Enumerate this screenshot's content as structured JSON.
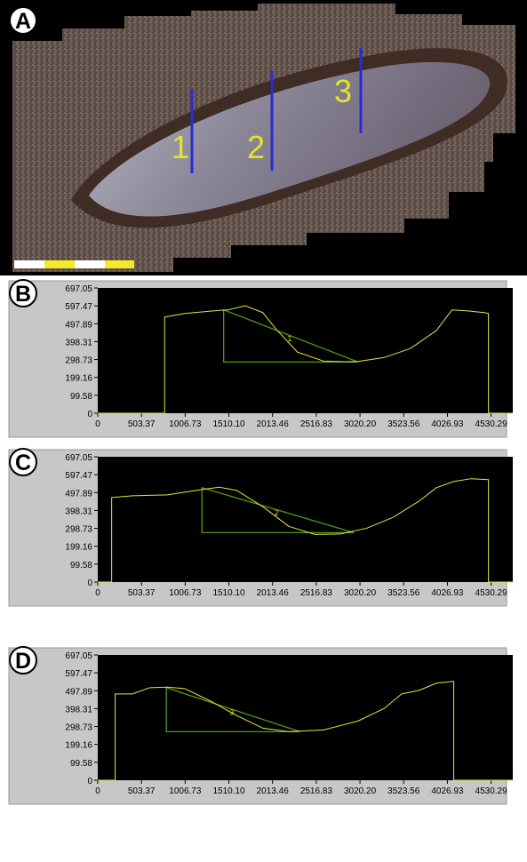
{
  "panels": {
    "photo_letter": "A",
    "photo_section_labels": [
      "1",
      "2",
      "3"
    ]
  },
  "chart_data": [
    {
      "type": "line",
      "panel": "B",
      "profile_label": "1",
      "yticks": [
        "697.05",
        "597.47",
        "497.89",
        "398.31",
        "298.73",
        "199.16",
        "99.58",
        "0"
      ],
      "xticks": [
        "0",
        "503.37",
        "1006.73",
        "1510.10",
        "2013.46",
        "2516.83",
        "3020.20",
        "3523.56",
        "4026.93",
        "4530.29"
      ],
      "ylim": [
        0,
        697.05
      ],
      "xlim": [
        0,
        4780
      ],
      "grid": false,
      "series": [
        {
          "x": [
            0,
            770,
            770,
            1000,
            1400,
            1500,
            1700,
            1900,
            2050,
            2300,
            2600,
            2850,
            3000,
            3300,
            3600,
            3900,
            4080,
            4250,
            4450,
            4500,
            4500,
            4780
          ],
          "values": [
            0,
            0,
            535,
            555,
            572,
            575,
            598,
            560,
            470,
            340,
            290,
            286,
            288,
            310,
            360,
            460,
            575,
            570,
            560,
            555,
            0,
            0
          ]
        }
      ],
      "triangle": {
        "top": [
          1450,
          575
        ],
        "corner": [
          1450,
          285
        ],
        "end": [
          3000,
          285
        ]
      }
    },
    {
      "type": "line",
      "panel": "C",
      "profile_label": "2",
      "yticks": [
        "697.05",
        "597.47",
        "497.89",
        "398.31",
        "298.73",
        "199.16",
        "99.58",
        "0"
      ],
      "xticks": [
        "0",
        "503.37",
        "1006.73",
        "1510.10",
        "2013.46",
        "2516.83",
        "3020.20",
        "3523.56",
        "4026.93",
        "4530.29"
      ],
      "ylim": [
        0,
        697.05
      ],
      "xlim": [
        0,
        4780
      ],
      "grid": false,
      "series": [
        {
          "x": [
            0,
            160,
            160,
            400,
            800,
            1200,
            1400,
            1600,
            1900,
            2200,
            2500,
            2800,
            3100,
            3400,
            3700,
            3900,
            4100,
            4300,
            4500,
            4500,
            4780
          ],
          "values": [
            0,
            0,
            470,
            480,
            485,
            515,
            528,
            510,
            420,
            310,
            265,
            268,
            300,
            360,
            450,
            525,
            560,
            575,
            570,
            0,
            0
          ]
        }
      ],
      "triangle": {
        "top": [
          1200,
          525
        ],
        "corner": [
          1200,
          275
        ],
        "end": [
          2950,
          275
        ]
      }
    },
    {
      "type": "line",
      "panel": "D",
      "profile_label": "3",
      "yticks": [
        "697.05",
        "597.47",
        "497.89",
        "398.31",
        "298.73",
        "199.16",
        "99.58",
        "0"
      ],
      "xticks": [
        "0",
        "503.37",
        "1006.73",
        "1510.10",
        "2013.46",
        "2516.83",
        "3020.20",
        "3523.56",
        "4026.93",
        "4530.29"
      ],
      "ylim": [
        0,
        697.05
      ],
      "xlim": [
        0,
        4780
      ],
      "grid": false,
      "series": [
        {
          "x": [
            0,
            200,
            200,
            400,
            600,
            800,
            1000,
            1300,
            1600,
            1900,
            2200,
            2600,
            3000,
            3300,
            3500,
            3700,
            3900,
            4100,
            4100,
            4780
          ],
          "values": [
            0,
            0,
            480,
            480,
            515,
            518,
            510,
            440,
            360,
            290,
            270,
            280,
            330,
            400,
            480,
            500,
            540,
            550,
            0,
            0
          ]
        }
      ],
      "triangle": {
        "top": [
          790,
          515
        ],
        "corner": [
          790,
          270
        ],
        "end": [
          2330,
          270
        ]
      }
    }
  ]
}
